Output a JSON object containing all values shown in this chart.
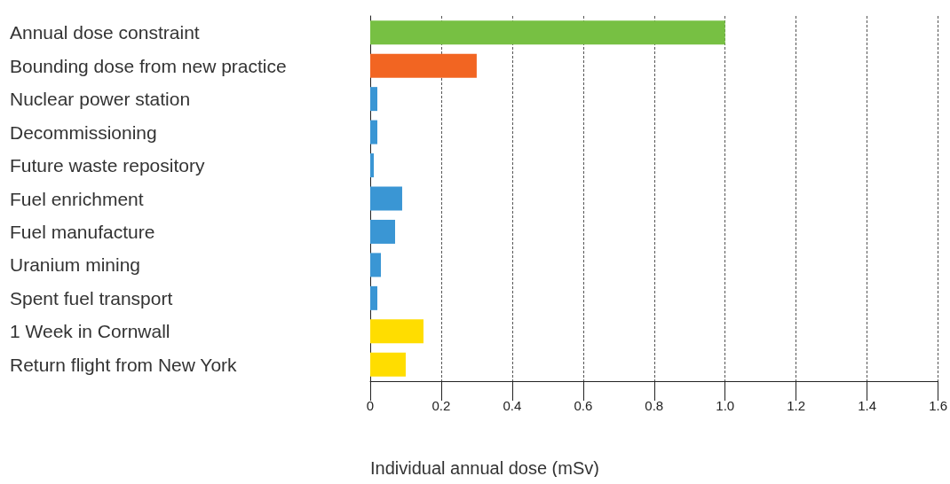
{
  "chart_data": {
    "type": "bar",
    "orientation": "horizontal",
    "categories": [
      "Annual dose constraint",
      "Bounding dose from new practice",
      "Nuclear power station",
      "Decommissioning",
      "Future waste repository",
      "Fuel enrichment",
      "Fuel manufacture",
      "Uranium mining",
      "Spent fuel transport",
      "1 Week in Cornwall",
      "Return flight from New York"
    ],
    "values": [
      1.0,
      0.3,
      0.02,
      0.02,
      0.01,
      0.09,
      0.07,
      0.03,
      0.02,
      0.15,
      0.1
    ],
    "colors": [
      "#77c043",
      "#f26522",
      "#3a96d4",
      "#3a96d4",
      "#3a96d4",
      "#3a96d4",
      "#3a96d4",
      "#3a96d4",
      "#3a96d4",
      "#ffdd00",
      "#ffdd00"
    ],
    "xlabel": "Individual annual dose (mSv)",
    "xlim": [
      0,
      1.6
    ],
    "xticks": [
      0,
      0.2,
      0.4,
      0.6,
      0.8,
      {
        "value": 1,
        "label": "1.0"
      },
      1.2,
      1.4,
      1.6
    ],
    "grid": "x"
  }
}
